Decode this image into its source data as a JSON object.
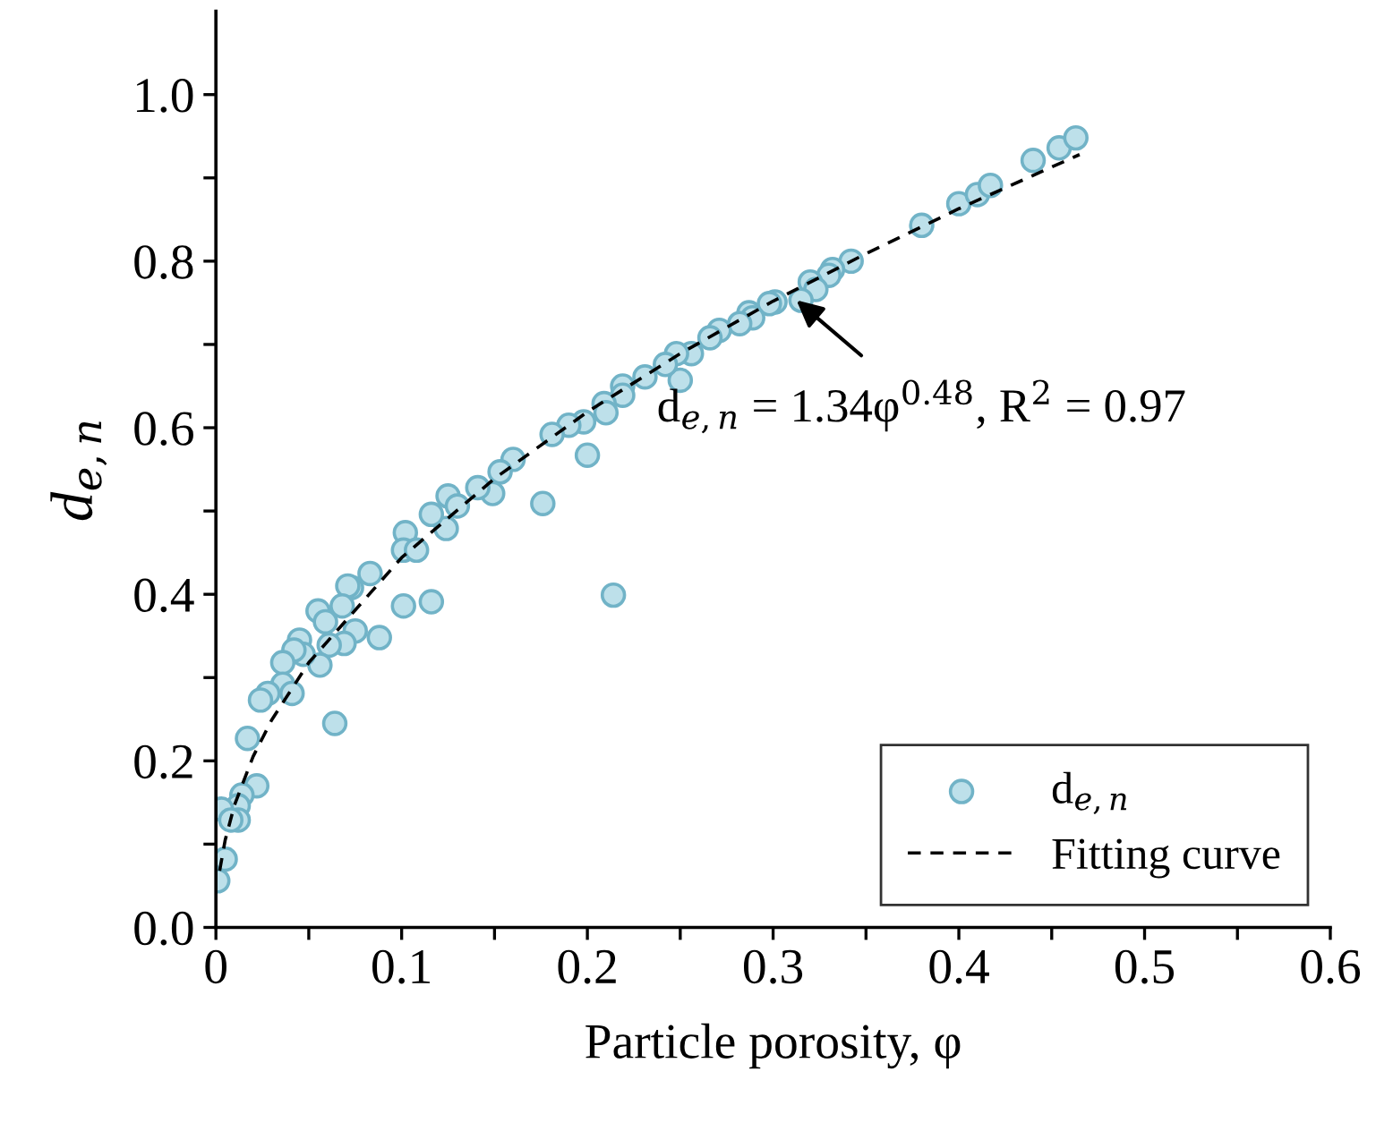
{
  "chart_data": {
    "type": "scatter",
    "xlabel": "Particle porosity, φ",
    "ylabel": "d$_{e,n}$",
    "xlim": [
      0,
      0.6
    ],
    "ylim": [
      0,
      1.1
    ],
    "xticks": [
      0,
      {
        "value": 0.05,
        "label": null
      },
      0.1,
      {
        "value": 0.15,
        "label": null
      },
      0.2,
      {
        "value": 0.25,
        "label": null
      },
      0.3,
      {
        "value": 0.35,
        "label": null
      },
      0.4,
      {
        "value": 0.45,
        "label": null
      },
      0.5,
      {
        "value": 0.55,
        "label": null
      },
      0.6
    ],
    "yticks": [
      {
        "value": 0,
        "label": "0.0"
      },
      {
        "value": 0.1,
        "label": null
      },
      0.2,
      {
        "value": 0.3,
        "label": null
      },
      0.4,
      {
        "value": 0.5,
        "label": null
      },
      0.6,
      {
        "value": 0.7,
        "label": null
      },
      0.8,
      {
        "value": 0.9,
        "label": null
      },
      {
        "value": 1.0,
        "label": "1.0"
      }
    ],
    "grid": false,
    "legend": "bottom right",
    "annotations": [
      {
        "text": "d$_{e,n}$ = 1.34φ$^{0.48}$, R$^{2}$ = 0.97",
        "x": 0.3126,
        "y": 0.753
      }
    ],
    "series": [
      {
        "name": "d$_{e,n}$",
        "marker": "circle",
        "color": "#bde0ea",
        "x": [
          0.38,
          0.4,
          0.41,
          0.417,
          0.44,
          0.454,
          0.463,
          0.342,
          0.332,
          0.33,
          0.32,
          0.323,
          0.315,
          0.301,
          0.298,
          0.287,
          0.289,
          0.282,
          0.271,
          0.266,
          0.256,
          0.248,
          0.25,
          0.242,
          0.231,
          0.219,
          0.219,
          0.209,
          0.21,
          0.198,
          0.19,
          0.181,
          0.2,
          0.16,
          0.153,
          0.149,
          0.141,
          0.125,
          0.13,
          0.124,
          0.116,
          0.102,
          0.101,
          0.108,
          0.083,
          0.073,
          0.071,
          0.068,
          0.055,
          0.059,
          0.075,
          0.088,
          0.101,
          0.116,
          0.069,
          0.061,
          0.056,
          0.045,
          0.047,
          0.042,
          0.036,
          0.036,
          0.041,
          0.028,
          0.024,
          0.064,
          0.017,
          0.022,
          0.014,
          0.012,
          0.012,
          0.003,
          0.008,
          0.005,
          0.001,
          0.176,
          0.214
        ],
        "values": [
          0.843,
          0.869,
          0.88,
          0.891,
          0.921,
          0.936,
          0.948,
          0.8,
          0.79,
          0.783,
          0.775,
          0.766,
          0.753,
          0.751,
          0.749,
          0.738,
          0.732,
          0.725,
          0.717,
          0.708,
          0.689,
          0.689,
          0.657,
          0.676,
          0.661,
          0.65,
          0.639,
          0.629,
          0.618,
          0.607,
          0.603,
          0.592,
          0.567,
          0.562,
          0.547,
          0.521,
          0.528,
          0.518,
          0.506,
          0.479,
          0.496,
          0.474,
          0.453,
          0.453,
          0.425,
          0.408,
          0.41,
          0.386,
          0.38,
          0.367,
          0.356,
          0.348,
          0.386,
          0.391,
          0.341,
          0.339,
          0.315,
          0.345,
          0.328,
          0.333,
          0.318,
          0.292,
          0.281,
          0.281,
          0.273,
          0.245,
          0.227,
          0.17,
          0.159,
          0.146,
          0.129,
          0.142,
          0.129,
          0.082,
          0.056,
          0.509,
          0.399
        ]
      },
      {
        "name": "Fitting curve",
        "type": "line",
        "marker": "none",
        "line_style": "dashed",
        "color": "#000000",
        "x": [
          0.002,
          0.005,
          0.01,
          0.02,
          0.03,
          0.05,
          0.1,
          0.15,
          0.2,
          0.25,
          0.3,
          0.35,
          0.4,
          0.465
        ],
        "values": [
          0.068,
          0.105,
          0.147,
          0.205,
          0.249,
          0.318,
          0.444,
          0.539,
          0.619,
          0.689,
          0.752,
          0.809,
          0.863,
          0.928
        ]
      }
    ]
  }
}
